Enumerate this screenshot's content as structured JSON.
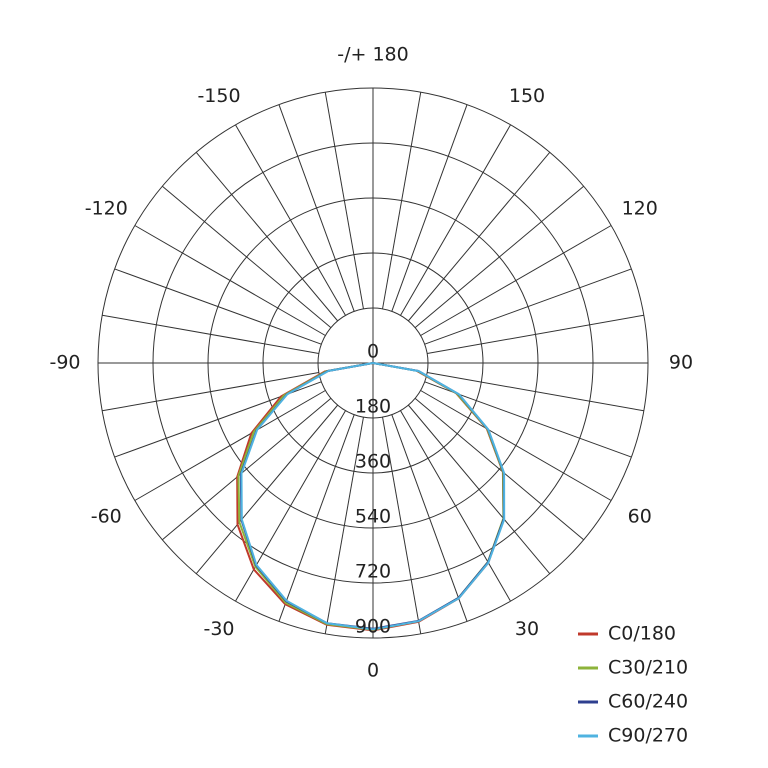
{
  "chart_data": {
    "type": "polar",
    "theta": [
      -90,
      -80,
      -70,
      -60,
      -50,
      -40,
      -30,
      -20,
      -10,
      0,
      10,
      20,
      30,
      40,
      50,
      60,
      70,
      80,
      90
    ],
    "series": [
      {
        "name": "C0/180",
        "color": "#c0392b",
        "values": [
          0,
          160,
          320,
          460,
          580,
          690,
          780,
          840,
          870,
          875,
          860,
          820,
          755,
          665,
          555,
          430,
          290,
          145,
          0
        ]
      },
      {
        "name": "C30/210",
        "color": "#8db33a",
        "values": [
          0,
          155,
          310,
          450,
          575,
          680,
          770,
          835,
          868,
          873,
          858,
          818,
          752,
          664,
          556,
          432,
          292,
          148,
          0
        ]
      },
      {
        "name": "C60/240",
        "color": "#2e3f8f",
        "values": [
          0,
          150,
          300,
          440,
          565,
          670,
          765,
          830,
          865,
          870,
          857,
          818,
          753,
          666,
          559,
          435,
          298,
          151,
          0
        ]
      },
      {
        "name": "C90/270",
        "color": "#4fb3e0",
        "values": [
          0,
          148,
          298,
          438,
          562,
          668,
          763,
          828,
          865,
          872,
          858,
          820,
          755,
          668,
          560,
          436,
          300,
          152,
          0
        ]
      }
    ],
    "rlim": [
      0,
      900
    ],
    "rticks": [
      0,
      180,
      360,
      540,
      720,
      900
    ],
    "thetaticks": [
      {
        "value": 180,
        "label": "-/+ 180"
      },
      -150,
      -120,
      -90,
      -60,
      -30,
      0,
      30,
      60,
      90,
      120,
      150
    ],
    "legend": "lower right"
  }
}
